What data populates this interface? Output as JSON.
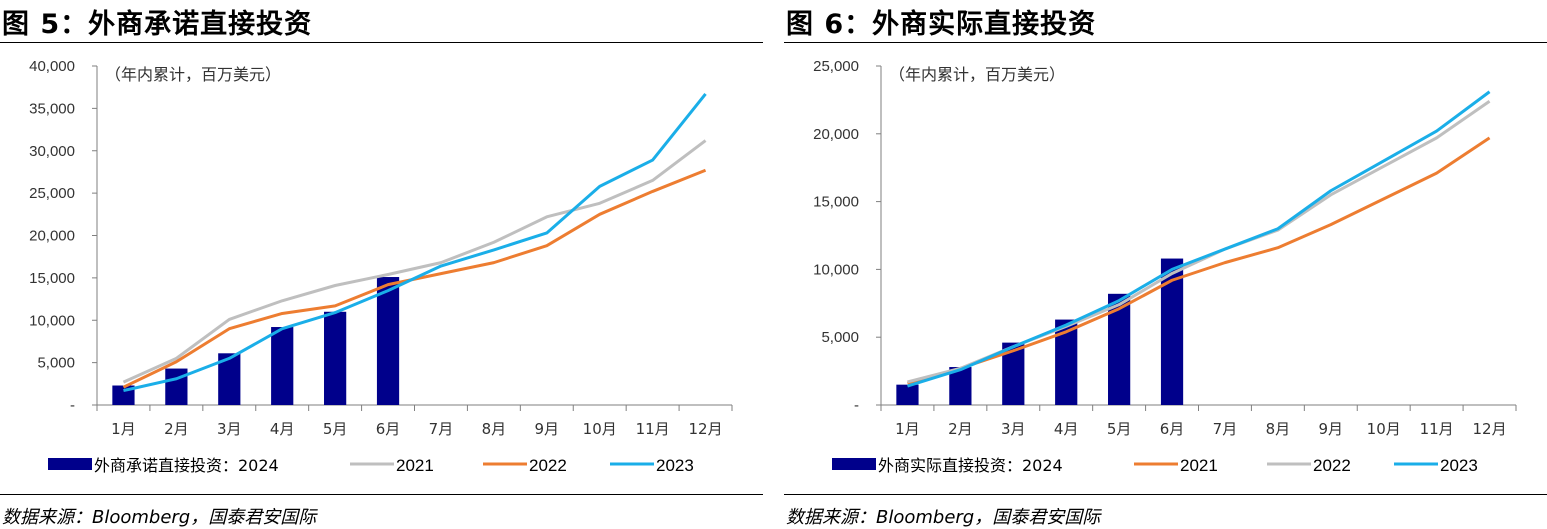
{
  "chart_data": [
    {
      "type": "bar",
      "title": "图 5：外商承诺直接投资",
      "note": "（年内累计，百万美元）",
      "categories": [
        "1月",
        "2月",
        "3月",
        "4月",
        "5月",
        "6月",
        "7月",
        "8月",
        "9月",
        "10月",
        "11月",
        "12月"
      ],
      "ylim": [
        0,
        40000
      ],
      "yticks": [
        "-",
        "5,000",
        "10,000",
        "15,000",
        "20,000",
        "25,000",
        "30,000",
        "35,000",
        "40,000"
      ],
      "legend_position": "bottom",
      "source": "数据来源：Bloomberg，国泰君安国际",
      "series": [
        {
          "name": "外商承诺直接投资：2024",
          "kind": "bar",
          "color": "#00008B",
          "values": [
            2300,
            4300,
            6100,
            9200,
            11000,
            15100,
            null,
            null,
            null,
            null,
            null,
            null
          ]
        },
        {
          "name": "2021",
          "kind": "line",
          "color": "#BFBFBF",
          "values": [
            2700,
            5500,
            10100,
            12300,
            14100,
            15400,
            16800,
            19200,
            22200,
            23800,
            26500,
            31200
          ]
        },
        {
          "name": "2022",
          "kind": "line",
          "color": "#ED7D31",
          "values": [
            2100,
            5100,
            9000,
            10800,
            11700,
            14200,
            15500,
            16800,
            18800,
            22500,
            25200,
            27700
          ]
        },
        {
          "name": "2023",
          "kind": "line",
          "color": "#1AAEE8",
          "values": [
            1700,
            3100,
            5500,
            9000,
            10900,
            13500,
            16400,
            18300,
            20300,
            25800,
            28900,
            36700
          ]
        }
      ]
    },
    {
      "type": "bar",
      "title": "图 6：外商实际直接投资",
      "note": "（年内累计，百万美元）",
      "categories": [
        "1月",
        "2月",
        "3月",
        "4月",
        "5月",
        "6月",
        "7月",
        "8月",
        "9月",
        "10月",
        "11月",
        "12月"
      ],
      "ylim": [
        0,
        25000
      ],
      "yticks": [
        "-",
        "5,000",
        "10,000",
        "15,000",
        "20,000",
        "25,000"
      ],
      "legend_position": "bottom",
      "source": "数据来源：Bloomberg，国泰君安国际",
      "series": [
        {
          "name": "外商实际直接投资：2024",
          "kind": "bar",
          "color": "#00008B",
          "values": [
            1500,
            2800,
            4600,
            6300,
            8200,
            10800,
            null,
            null,
            null,
            null,
            null,
            null
          ]
        },
        {
          "name": "2021",
          "kind": "line",
          "color": "#ED7D31",
          "values": [
            1600,
            2700,
            4000,
            5400,
            7100,
            9200,
            10500,
            11600,
            13300,
            15200,
            17100,
            19700
          ]
        },
        {
          "name": "2022",
          "kind": "line",
          "color": "#BFBFBF",
          "values": [
            1700,
            2700,
            4300,
            5800,
            7400,
            9700,
            11500,
            12900,
            15500,
            17600,
            19700,
            22400
          ]
        },
        {
          "name": "2023",
          "kind": "line",
          "color": "#1AAEE8",
          "values": [
            1400,
            2600,
            4300,
            5900,
            7700,
            10000,
            11500,
            13000,
            15800,
            18000,
            20200,
            23100
          ]
        }
      ]
    }
  ]
}
